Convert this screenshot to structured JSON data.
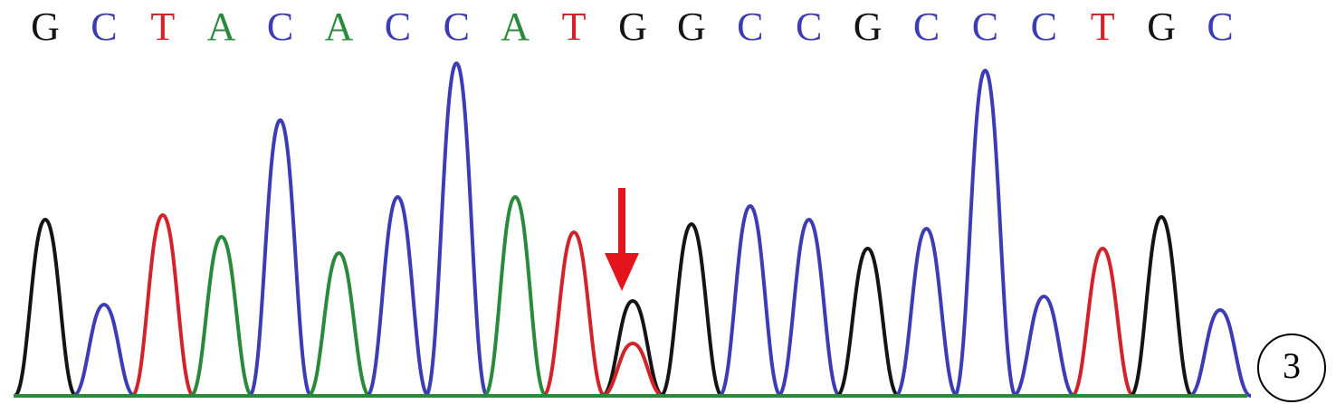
{
  "chart_data": {
    "type": "chromatogram",
    "colors": {
      "A": "#2a8a3c",
      "C": "#3c3cb4",
      "G": "#141414",
      "T": "#d2232a"
    },
    "peaks": [
      {
        "base": "G",
        "height": 195
      },
      {
        "base": "C",
        "height": 101
      },
      {
        "base": "T",
        "height": 200
      },
      {
        "base": "A",
        "height": 176
      },
      {
        "base": "C",
        "height": 305
      },
      {
        "base": "A",
        "height": 158
      },
      {
        "base": "C",
        "height": 220
      },
      {
        "base": "C",
        "height": 368
      },
      {
        "base": "A",
        "height": 220
      },
      {
        "base": "T",
        "height": 181
      },
      {
        "base": "G",
        "height": 105,
        "minor": {
          "base": "T",
          "height": 58
        }
      },
      {
        "base": "G",
        "height": 190
      },
      {
        "base": "C",
        "height": 210
      },
      {
        "base": "C",
        "height": 195
      },
      {
        "base": "G",
        "height": 163
      },
      {
        "base": "C",
        "height": 185
      },
      {
        "base": "C",
        "height": 360
      },
      {
        "base": "C",
        "height": 110
      },
      {
        "base": "T",
        "height": 163
      },
      {
        "base": "G",
        "height": 198
      },
      {
        "base": "C",
        "height": 95
      }
    ],
    "panel_label": "3"
  }
}
